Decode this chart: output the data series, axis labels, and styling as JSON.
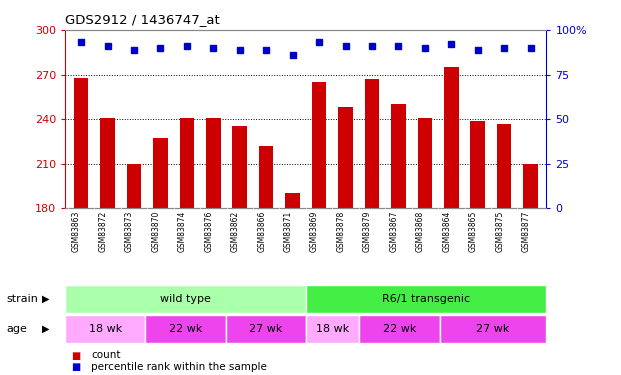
{
  "title": "GDS2912 / 1436747_at",
  "samples": [
    "GSM83863",
    "GSM83872",
    "GSM83873",
    "GSM83870",
    "GSM83874",
    "GSM83876",
    "GSM83862",
    "GSM83866",
    "GSM83871",
    "GSM83869",
    "GSM83878",
    "GSM83879",
    "GSM83867",
    "GSM83868",
    "GSM83864",
    "GSM83865",
    "GSM83875",
    "GSM83877"
  ],
  "counts": [
    268,
    241,
    210,
    227,
    241,
    241,
    235,
    222,
    190,
    265,
    248,
    267,
    250,
    241,
    275,
    239,
    237,
    210
  ],
  "percentile_ranks": [
    93,
    91,
    89,
    90,
    91,
    90,
    89,
    89,
    86,
    93,
    91,
    91,
    91,
    90,
    92,
    89,
    90,
    90
  ],
  "ylim_left": [
    180,
    300
  ],
  "ylim_right": [
    0,
    100
  ],
  "yticks_left": [
    180,
    210,
    240,
    270,
    300
  ],
  "yticks_right": [
    0,
    25,
    50,
    75,
    100
  ],
  "bar_color": "#cc0000",
  "dot_color": "#0000cc",
  "strain_groups": [
    {
      "label": "wild type",
      "start": 0,
      "end": 9,
      "color": "#aaffaa"
    },
    {
      "label": "R6/1 transgenic",
      "start": 9,
      "end": 18,
      "color": "#44ee44"
    }
  ],
  "age_groups": [
    {
      "label": "18 wk",
      "start": 0,
      "end": 3,
      "color": "#ffaaff"
    },
    {
      "label": "22 wk",
      "start": 3,
      "end": 6,
      "color": "#ee44ee"
    },
    {
      "label": "27 wk",
      "start": 6,
      "end": 9,
      "color": "#ee44ee"
    },
    {
      "label": "18 wk",
      "start": 9,
      "end": 11,
      "color": "#ffaaff"
    },
    {
      "label": "22 wk",
      "start": 11,
      "end": 14,
      "color": "#ee44ee"
    },
    {
      "label": "27 wk",
      "start": 14,
      "end": 18,
      "color": "#ee44ee"
    }
  ],
  "legend_count_label": "count",
  "legend_percentile_label": "percentile rank within the sample",
  "strain_label": "strain",
  "age_label": "age",
  "left_axis_color": "#cc0000",
  "right_axis_color": "#0000cc",
  "plot_bg_color": "#ffffff",
  "xlabels_bg_color": "#c8c8c8",
  "grid_color": "#000000",
  "border_color": "#888888"
}
